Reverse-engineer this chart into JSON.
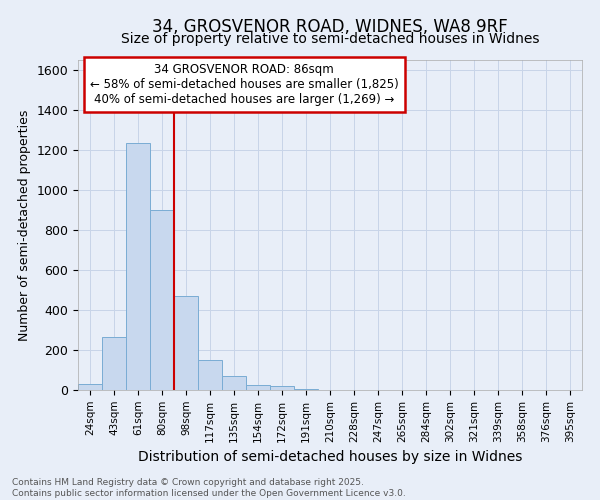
{
  "title1": "34, GROSVENOR ROAD, WIDNES, WA8 9RF",
  "title2": "Size of property relative to semi-detached houses in Widnes",
  "xlabel": "Distribution of semi-detached houses by size in Widnes",
  "ylabel": "Number of semi-detached properties",
  "footnote": "Contains HM Land Registry data © Crown copyright and database right 2025.\nContains public sector information licensed under the Open Government Licence v3.0.",
  "bin_labels": [
    "24sqm",
    "43sqm",
    "61sqm",
    "80sqm",
    "98sqm",
    "117sqm",
    "135sqm",
    "154sqm",
    "172sqm",
    "191sqm",
    "210sqm",
    "228sqm",
    "247sqm",
    "265sqm",
    "284sqm",
    "302sqm",
    "321sqm",
    "339sqm",
    "358sqm",
    "376sqm",
    "395sqm"
  ],
  "bar_heights": [
    30,
    265,
    1235,
    900,
    470,
    150,
    70,
    25,
    20,
    5,
    0,
    0,
    0,
    0,
    0,
    0,
    0,
    0,
    0,
    0,
    0
  ],
  "bar_color": "#c8d8ee",
  "bar_edge_color": "#7aacd4",
  "grid_color": "#c8d4e8",
  "annotation_text": "34 GROSVENOR ROAD: 86sqm\n← 58% of semi-detached houses are smaller (1,825)\n40% of semi-detached houses are larger (1,269) →",
  "annotation_box_color": "#ffffff",
  "annotation_edge_color": "#cc0000",
  "annotation_text_color": "#000000",
  "vline_color": "#cc0000",
  "vline_x": 3.5,
  "ylim": [
    0,
    1650
  ],
  "yticks": [
    0,
    200,
    400,
    600,
    800,
    1000,
    1200,
    1400,
    1600
  ],
  "bg_color": "#e8eef8",
  "title_fontsize": 12,
  "subtitle_fontsize": 10
}
